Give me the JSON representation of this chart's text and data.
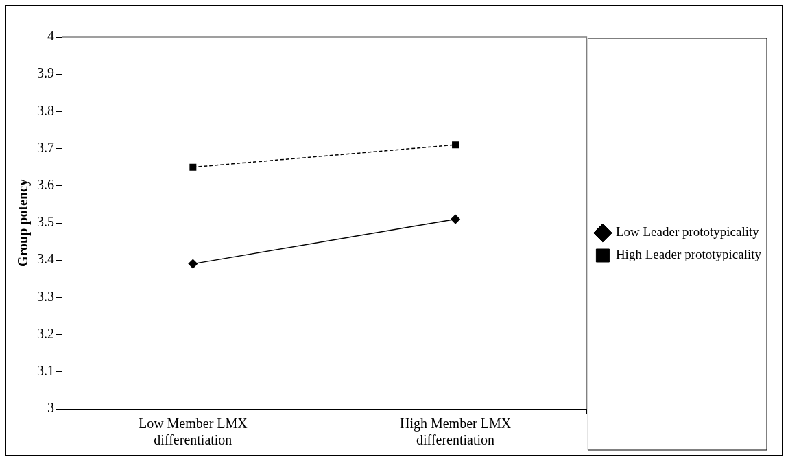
{
  "chart_data": {
    "type": "line",
    "ylabel": "Group potency",
    "categories": [
      "Low Member LMX differentiation",
      "High Member LMX differentiation"
    ],
    "series": [
      {
        "name": "Low Leader prototypicality",
        "color": "#000000",
        "values": [
          3.39,
          3.51
        ],
        "marker": "diamond",
        "line_style": "solid"
      },
      {
        "name": "High Leader prototypicality",
        "color": "#000000",
        "values": [
          3.65,
          3.71
        ],
        "marker": "square",
        "line_style": "dashed"
      }
    ],
    "ylim": [
      3,
      4
    ],
    "yticks": [
      3,
      3.1,
      3.2,
      3.3,
      3.4,
      3.5,
      3.6,
      3.7,
      3.8,
      3.9,
      4
    ],
    "grid": false,
    "legend": "right"
  }
}
